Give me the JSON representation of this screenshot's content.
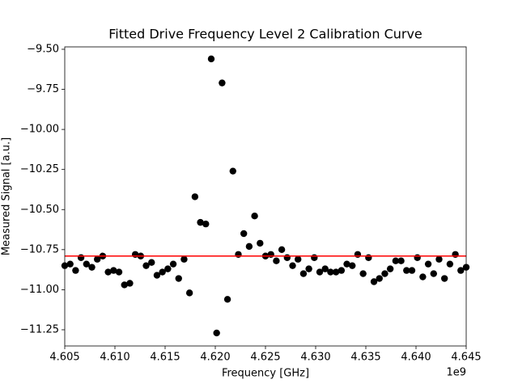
{
  "chart_data": {
    "type": "scatter",
    "title": "Fitted Drive Frequency Level 2 Calibration Curve",
    "x_label": "Frequency [GHz]",
    "y_label": "Measured Signal [a.u.]",
    "x_offset_label": "1e9",
    "xlim": [
      4.605,
      4.645
    ],
    "ylim": [
      -11.351,
      -9.485
    ],
    "xticks": [
      4.605,
      {
        "value": 4.61,
        "label": "4.610"
      },
      4.615,
      {
        "value": 4.62,
        "label": "4.620"
      },
      4.625,
      {
        "value": 4.63,
        "label": "4.630"
      },
      4.635,
      {
        "value": 4.64,
        "label": "4.640"
      },
      4.645
    ],
    "yticks": [
      {
        "value": -9.5,
        "label": "−9.50"
      },
      {
        "value": -9.75,
        "label": "−9.75"
      },
      {
        "value": -10.0,
        "label": "−10.00"
      },
      {
        "value": -10.25,
        "label": "−10.25"
      },
      {
        "value": -10.5,
        "label": "−10.50"
      },
      {
        "value": -10.75,
        "label": "−10.75"
      },
      {
        "value": -11.0,
        "label": "−11.00"
      },
      {
        "value": -11.25,
        "label": "−11.25"
      }
    ],
    "series": [
      {
        "color": "#000000",
        "x": [
          4.605,
          4.605541,
          4.606081,
          4.606622,
          4.607162,
          4.607703,
          4.608243,
          4.608784,
          4.609324,
          4.609865,
          4.610405,
          4.610946,
          4.611486,
          4.612027,
          4.612568,
          4.613108,
          4.613649,
          4.614189,
          4.61473,
          4.61527,
          4.615811,
          4.616351,
          4.616892,
          4.617432,
          4.617973,
          4.618514,
          4.619054,
          4.619595,
          4.620135,
          4.620676,
          4.621216,
          4.621757,
          4.622297,
          4.622838,
          4.623378,
          4.623919,
          4.624459,
          4.625,
          4.625541,
          4.626081,
          4.626622,
          4.627162,
          4.627703,
          4.628243,
          4.628784,
          4.629324,
          4.629865,
          4.630405,
          4.630946,
          4.631486,
          4.632027,
          4.632568,
          4.633108,
          4.633649,
          4.634189,
          4.63473,
          4.63527,
          4.635811,
          4.636351,
          4.636892,
          4.637432,
          4.637973,
          4.638514,
          4.639054,
          4.639595,
          4.640135,
          4.640676,
          4.641216,
          4.641757,
          4.642297,
          4.642838,
          4.643378,
          4.643919,
          4.644459,
          4.645
        ],
        "values": [
          -10.85,
          -10.84,
          -10.88,
          -10.8,
          -10.84,
          -10.86,
          -10.81,
          -10.79,
          -10.89,
          -10.88,
          -10.89,
          -10.97,
          -10.96,
          -10.78,
          -10.79,
          -10.85,
          -10.83,
          -10.91,
          -10.89,
          -10.87,
          -10.84,
          -10.93,
          -10.81,
          -11.02,
          -10.42,
          -10.58,
          -10.59,
          -9.56,
          -11.27,
          -9.71,
          -11.06,
          -10.26,
          -10.78,
          -10.65,
          -10.73,
          -10.54,
          -10.71,
          -10.79,
          -10.78,
          -10.82,
          -10.75,
          -10.8,
          -10.85,
          -10.81,
          -10.9,
          -10.87,
          -10.8,
          -10.89,
          -10.87,
          -10.89,
          -10.89,
          -10.88,
          -10.84,
          -10.85,
          -10.78,
          -10.9,
          -10.8,
          -10.95,
          -10.93,
          -10.9,
          -10.87,
          -10.82,
          -10.82,
          -10.88,
          -10.88,
          -10.8,
          -10.92,
          -10.84,
          -10.9,
          -10.81,
          -10.93,
          -10.84,
          -10.78,
          -10.88,
          -10.86
        ]
      },
      {
        "color": "#ff0000",
        "type": "line",
        "x": [
          4.605,
          4.645
        ],
        "values": [
          -10.79,
          -10.79
        ]
      }
    ]
  }
}
